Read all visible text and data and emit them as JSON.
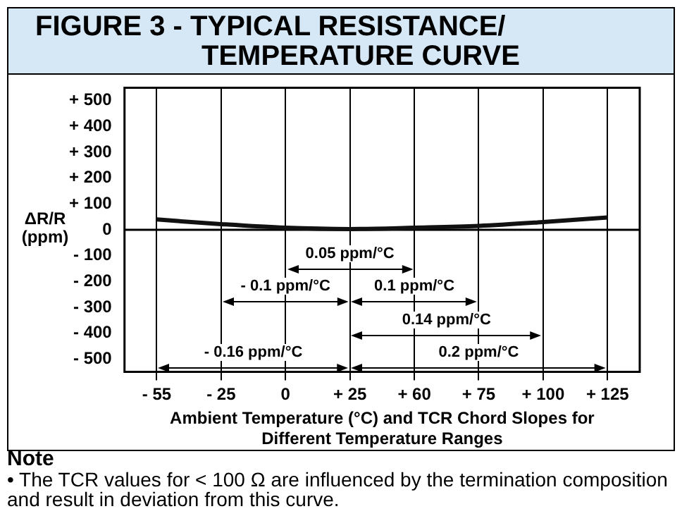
{
  "chart_data": {
    "type": "line",
    "title": "FIGURE 3 - TYPICAL RESISTANCE/ TEMPERATURE CURVE",
    "xlabel": "Ambient Temperature (°C) and TCR Chord Slopes for Different Temperature Ranges",
    "ylabel": "ΔR/R (ppm)",
    "categories": [
      "- 55",
      "- 25",
      "0",
      "+ 25",
      "+ 60",
      "+ 75",
      "+ 100",
      "+ 125"
    ],
    "series": [
      {
        "color": "#111111",
        "values": [
          40,
          22,
          8,
          3,
          8,
          15,
          30,
          48
        ]
      }
    ],
    "ylim": [
      -550,
      550
    ],
    "yticks": [
      {
        "value": -500,
        "label": "- 500"
      },
      {
        "value": -400,
        "label": "- 400"
      },
      {
        "value": -300,
        "label": "- 300"
      },
      {
        "value": -200,
        "label": "- 200"
      },
      {
        "value": -100,
        "label": "- 100"
      },
      0,
      {
        "value": 100,
        "label": "+ 100"
      },
      {
        "value": 200,
        "label": "+ 200"
      },
      {
        "value": 300,
        "label": "+ 300"
      },
      {
        "value": 400,
        "label": "+ 400"
      },
      {
        "value": 500,
        "label": "+ 500"
      }
    ],
    "grid": "x",
    "legend": false,
    "marker": "none",
    "line_style": "solid",
    "ref_lines": [
      {
        "axis": "y",
        "value": 0,
        "color": "#000000"
      }
    ],
    "annotations": [
      "0.05 ppm/°C",
      "- 0.1 ppm/°C",
      "0.1 ppm/°C",
      "0.14 ppm/°C",
      "- 0.16 ppm/°C",
      "0.2 ppm/°C",
      "Note",
      "• The TCR values for < 100 Ω are influenced by the termination composition and result in deviation from this curve."
    ]
  }
}
